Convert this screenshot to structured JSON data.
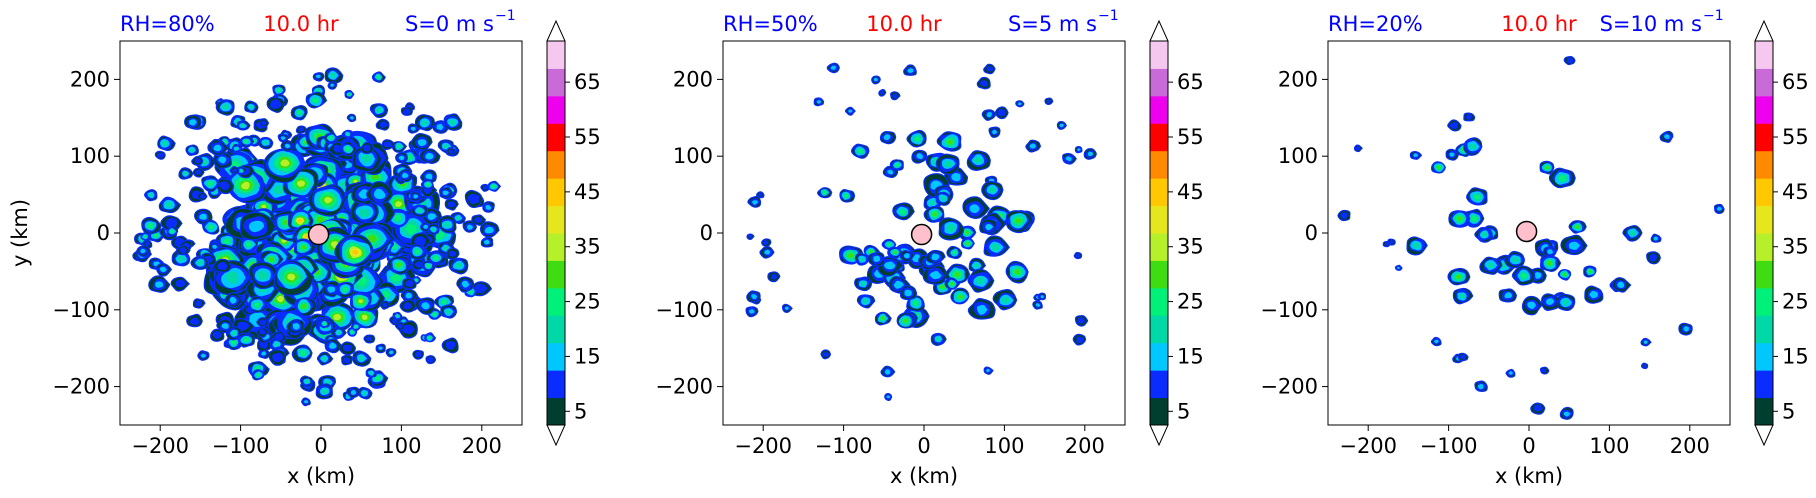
{
  "colorbar": {
    "levels": [
      5,
      10,
      15,
      20,
      25,
      30,
      35,
      40,
      45,
      50,
      55,
      60,
      65,
      70
    ],
    "tick_labels": [
      "5",
      "15",
      "25",
      "35",
      "45",
      "55",
      "65"
    ],
    "colors": [
      "#003f2f",
      "#0a2cff",
      "#00c8ff",
      "#00d8a8",
      "#00f07a",
      "#3fdc12",
      "#b6f02a",
      "#e6e61e",
      "#ffc800",
      "#ff8a00",
      "#ff0000",
      "#ee00ee",
      "#c86ad8",
      "#f5c8f0"
    ],
    "under_color": "#ffffff",
    "over_color": "#ffffff"
  },
  "chart_data": [
    {
      "type": "heatmap",
      "id": "a",
      "title_left": "RH=80%",
      "title_center": "10.0 hr",
      "title_right": "S=0 m s",
      "title_right_exp": "−1",
      "title_left_color": "#0000ff",
      "title_center_color": "#ff0000",
      "title_right_color": "#0000ff",
      "xlabel": "x (km)",
      "ylabel": "y (km)",
      "xlim": [
        -250,
        250
      ],
      "ylim": [
        -250,
        250
      ],
      "xticks": [
        -200,
        -100,
        0,
        100,
        200
      ],
      "yticks": [
        -200,
        -100,
        0,
        100,
        200
      ],
      "xtick_labels": [
        "−200",
        "−100",
        "0",
        "100",
        "200"
      ],
      "ytick_labels": [
        "−200",
        "−100",
        "0",
        "100",
        "200"
      ],
      "center_marker": [
        -3,
        -2
      ],
      "marker_color": "#ffc0cb",
      "field": "reflectivity (dBZ), dense spiral convection, filled contours 5–70"
    },
    {
      "type": "heatmap",
      "id": "b",
      "title_left": "RH=50%",
      "title_center": "10.0 hr",
      "title_right": "S=5 m s",
      "title_right_exp": "−1",
      "title_left_color": "#0000ff",
      "title_center_color": "#ff0000",
      "title_right_color": "#0000ff",
      "xlabel": "x (km)",
      "ylabel": "",
      "xlim": [
        -250,
        250
      ],
      "ylim": [
        -250,
        250
      ],
      "xticks": [
        -200,
        -100,
        0,
        100,
        200
      ],
      "yticks": [
        -200,
        -100,
        0,
        100,
        200
      ],
      "xtick_labels": [
        "−200",
        "−100",
        "0",
        "100",
        "200"
      ],
      "ytick_labels": [
        "−200",
        "−100",
        "0",
        "100",
        "200"
      ],
      "center_marker": [
        -3,
        -2
      ],
      "marker_color": "#ffc0cb",
      "field": "reflectivity (dBZ), scattered convective cells, filled contours 5–70"
    },
    {
      "type": "heatmap",
      "id": "c",
      "title_left": "RH=20%",
      "title_center": "10.0 hr",
      "title_right": "S=10 m s",
      "title_right_exp": "−1",
      "title_left_color": "#0000ff",
      "title_center_color": "#ff0000",
      "title_right_color": "#0000ff",
      "xlabel": "x (km)",
      "ylabel": "",
      "xlim": [
        -250,
        250
      ],
      "ylim": [
        -250,
        250
      ],
      "xticks": [
        -200,
        -100,
        0,
        100,
        200
      ],
      "yticks": [
        -200,
        -100,
        0,
        100,
        200
      ],
      "xtick_labels": [
        "−200",
        "−100",
        "0",
        "100",
        "200"
      ],
      "ytick_labels": [
        "−200",
        "−100",
        "0",
        "100",
        "200"
      ],
      "center_marker": [
        -3,
        2
      ],
      "marker_color": "#ffc0cb",
      "field": "reflectivity (dBZ), sparse isolated cells, filled contours 5–70"
    }
  ]
}
